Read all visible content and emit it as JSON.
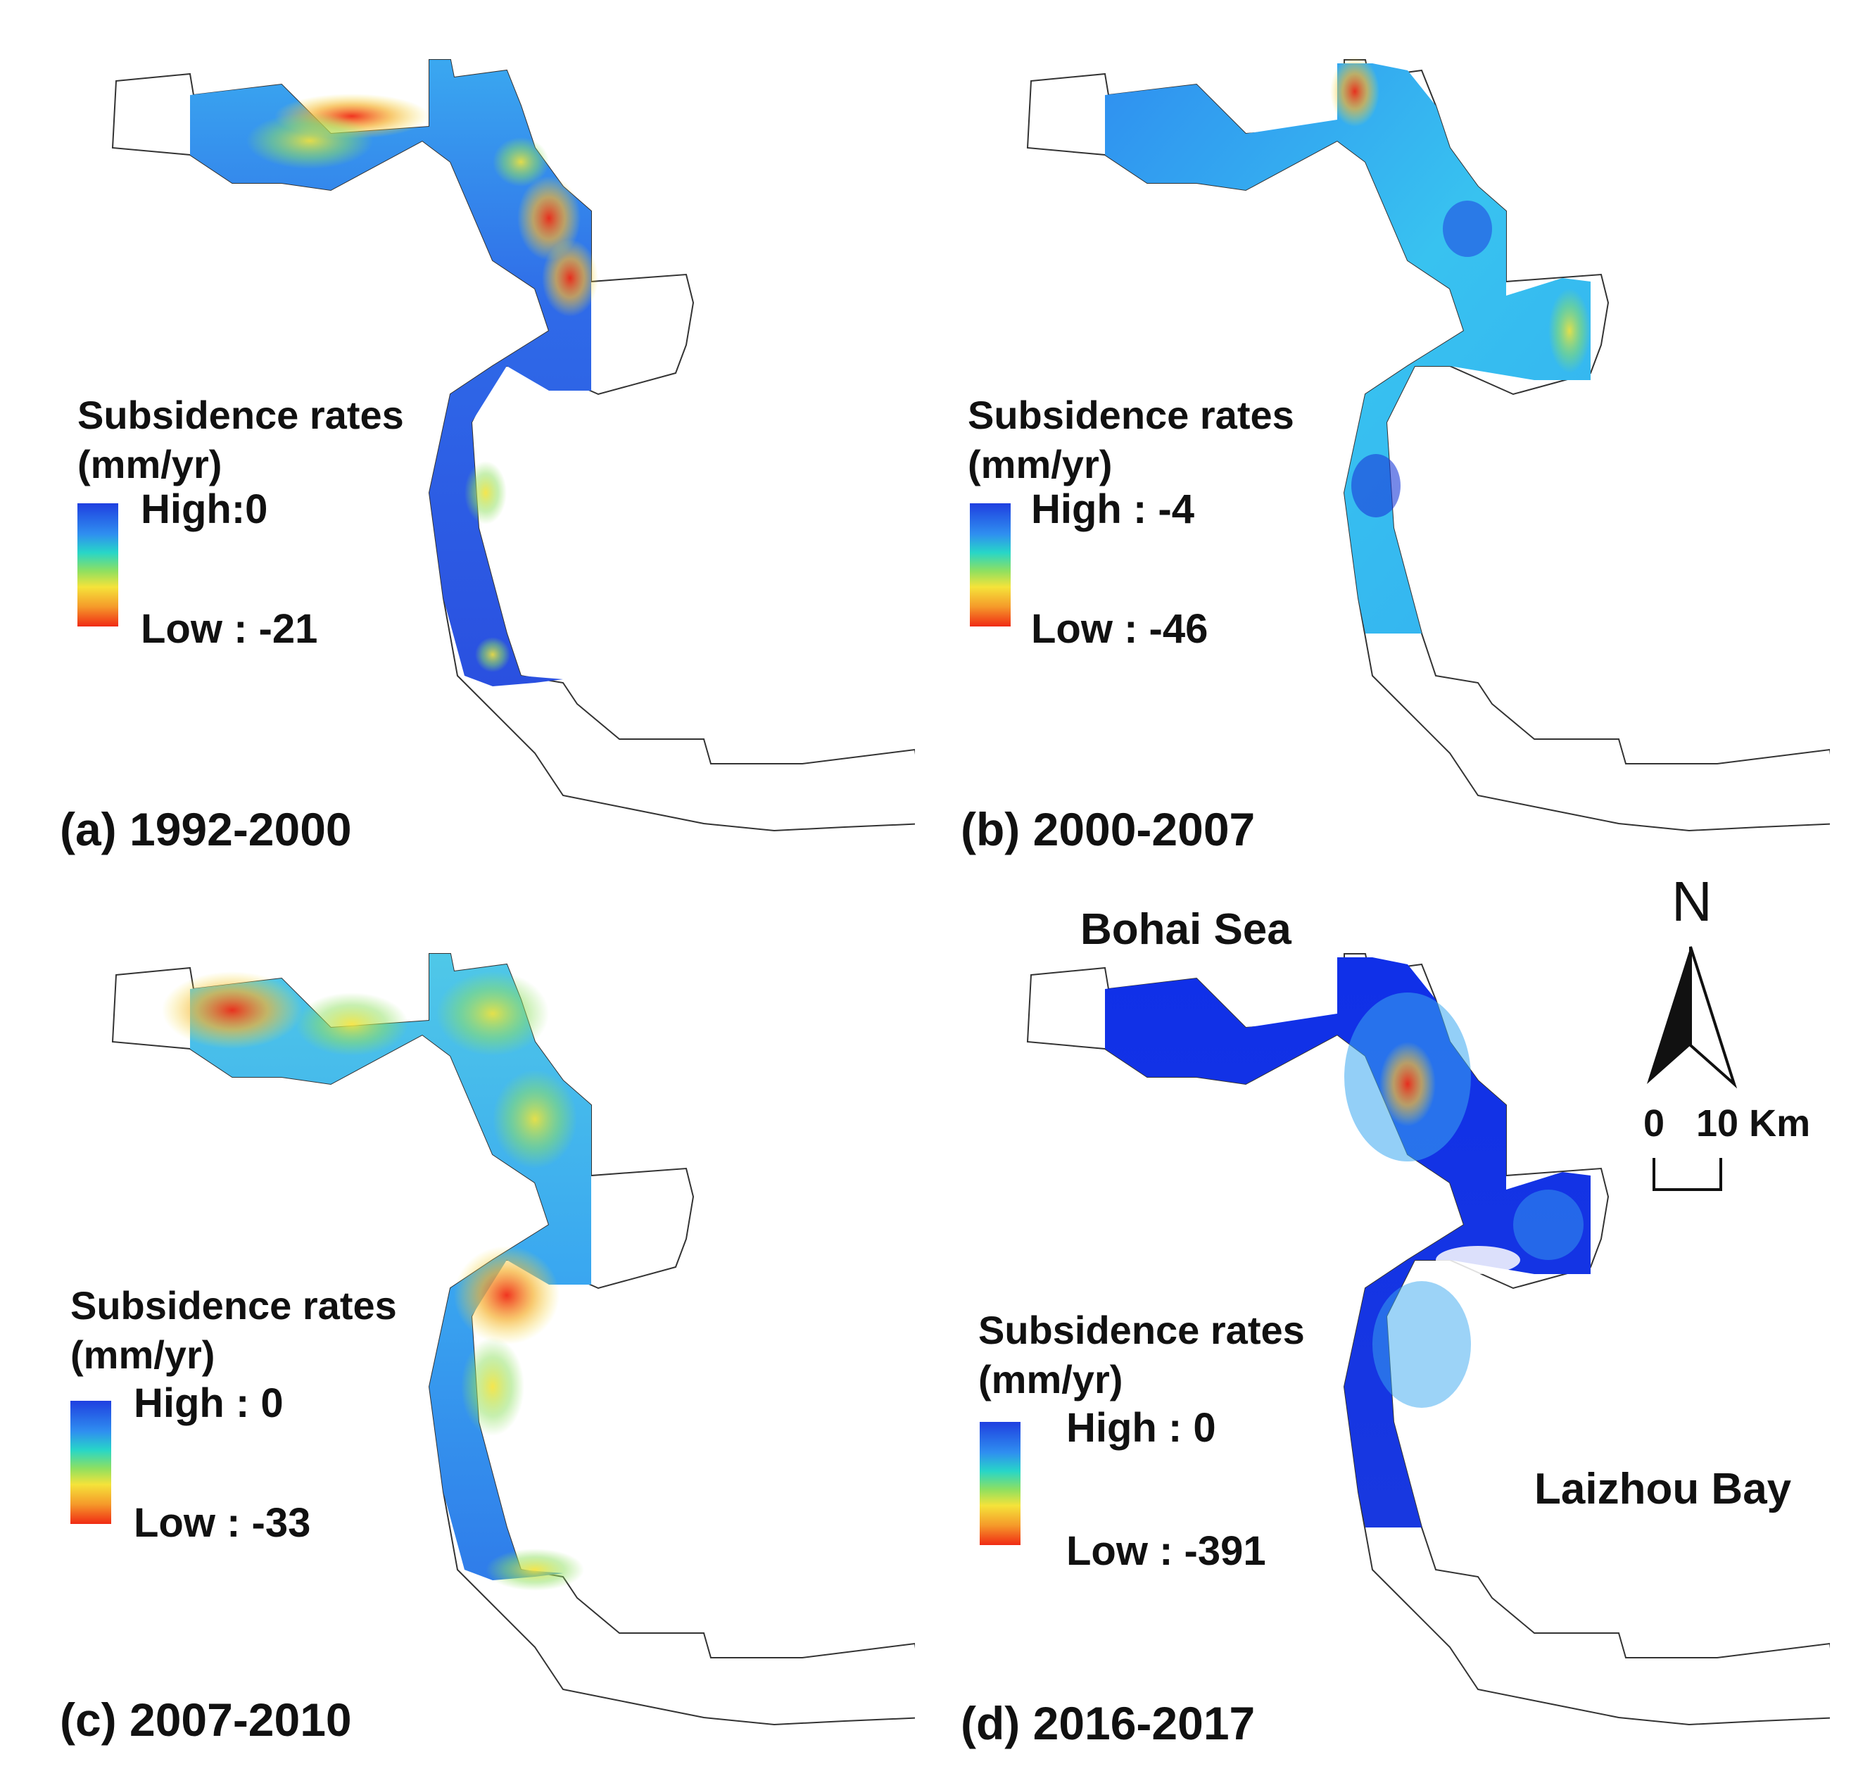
{
  "legend_title_line1": "Subsidence rates",
  "legend_title_line2": "(mm/yr)",
  "panels": [
    {
      "id": "a",
      "label": "(a) 1992-2000",
      "high": "High:0",
      "low": "Low : -21"
    },
    {
      "id": "b",
      "label": "(b) 2000-2007",
      "high": "High : -4",
      "low": "Low : -46"
    },
    {
      "id": "c",
      "label": "(c) 2007-2010",
      "high": "High : 0",
      "low": "Low : -33"
    },
    {
      "id": "d",
      "label": "(d) 2016-2017",
      "high": "High : 0",
      "low": "Low : -391"
    }
  ],
  "places": {
    "bohai_sea": "Bohai Sea",
    "laizhou_bay": "Laizhou Bay"
  },
  "north_letter": "N",
  "scale_bar": {
    "zero": "0",
    "ten": "10 Km"
  },
  "colors": {
    "high": "#1f3fe0",
    "mid": "#27d6c8",
    "low": "#f02a14"
  }
}
